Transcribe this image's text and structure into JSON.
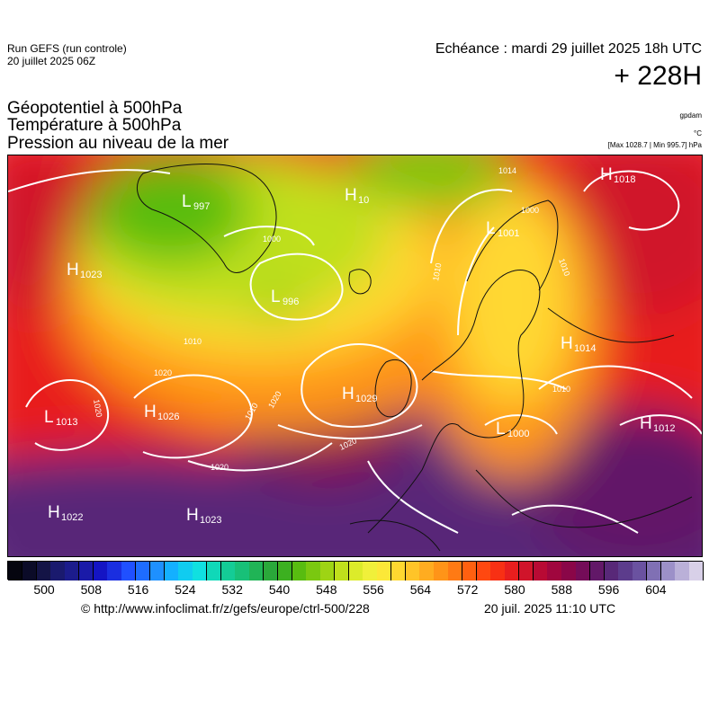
{
  "header": {
    "run_name": "Run GEFS (run controle)",
    "run_date": "20 juillet 2025 06Z",
    "echeance": "Echéance : mardi 29 juillet 2025 18h UTC",
    "lead_time": "+ 228H"
  },
  "legend": {
    "line1": "Géopotentiel à 500hPa",
    "line2": "Température à 500hPa",
    "line3": "Pression au niveau de la mer",
    "unit_geopot": "gpdam",
    "unit_temp": "°C",
    "pressure_range": "[Max 1028.7 | Min 995.7] hPa"
  },
  "pressure_systems": [
    {
      "type": "H",
      "value": "1018"
    },
    {
      "type": "H",
      "value": "1014"
    },
    {
      "type": "H",
      "value": "1012"
    },
    {
      "type": "H",
      "value": "1029"
    },
    {
      "type": "H",
      "value": "1026"
    },
    {
      "type": "H",
      "value": "1023"
    },
    {
      "type": "H",
      "value": "1022"
    },
    {
      "type": "H",
      "value": "1023"
    },
    {
      "type": "H",
      "value": "10"
    },
    {
      "type": "L",
      "value": "1013"
    },
    {
      "type": "L",
      "value": "996"
    },
    {
      "type": "L",
      "value": "997"
    },
    {
      "type": "L",
      "value": "1001"
    },
    {
      "type": "L",
      "value": "1000"
    }
  ],
  "isobar_labels": [
    "1014",
    "1000",
    "1000",
    "1010",
    "1010",
    "1010",
    "1020",
    "1020",
    "1020",
    "1020",
    "1020",
    "1010",
    "1010"
  ],
  "color_scale": {
    "colors": [
      "#05050f",
      "#0b0b28",
      "#141446",
      "#1a1a6e",
      "#1c1c8c",
      "#1a1aa8",
      "#1414c4",
      "#1a2ee0",
      "#2050ff",
      "#1e6cff",
      "#1e90ff",
      "#14b0ff",
      "#10ccf0",
      "#10e0e0",
      "#10d8b8",
      "#14cc96",
      "#18c078",
      "#20b456",
      "#2aa83a",
      "#3cb020",
      "#58bc10",
      "#7ac810",
      "#9ed414",
      "#c0e01c",
      "#dceb2a",
      "#f0f03a",
      "#fce838",
      "#ffd830",
      "#ffc428",
      "#ffac20",
      "#ff9418",
      "#ff7a14",
      "#ff6010",
      "#ff4810",
      "#f83014",
      "#e81e1e",
      "#d0142a",
      "#b80a34",
      "#a0063e",
      "#8a0648",
      "#740c58",
      "#621868",
      "#582878",
      "#5c3c8c",
      "#6a52a0",
      "#8070b4",
      "#9c90c8",
      "#bab0d8",
      "#d8d0e8"
    ],
    "ticks": [
      "500",
      "508",
      "516",
      "524",
      "532",
      "540",
      "548",
      "556",
      "564",
      "572",
      "580",
      "588",
      "596",
      "604"
    ]
  },
  "footer": {
    "source": "© http://www.infoclimat.fr/z/gefs/europe/ctrl-500/228",
    "generated": "20 juil. 2025 11:10 UTC"
  }
}
